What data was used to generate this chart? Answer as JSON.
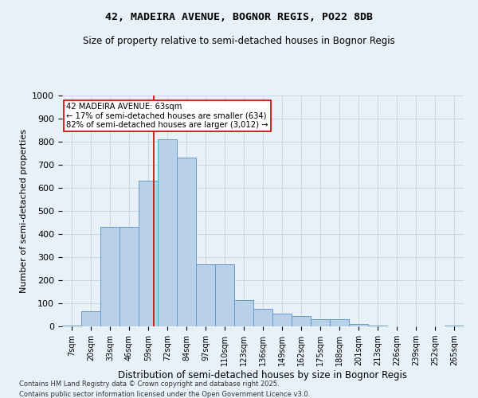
{
  "title": "42, MADEIRA AVENUE, BOGNOR REGIS, PO22 8DB",
  "subtitle": "Size of property relative to semi-detached houses in Bognor Regis",
  "xlabel": "Distribution of semi-detached houses by size in Bognor Regis",
  "ylabel": "Number of semi-detached properties",
  "categories": [
    "7sqm",
    "20sqm",
    "33sqm",
    "46sqm",
    "59sqm",
    "72sqm",
    "84sqm",
    "97sqm",
    "110sqm",
    "123sqm",
    "136sqm",
    "149sqm",
    "162sqm",
    "175sqm",
    "188sqm",
    "201sqm",
    "213sqm",
    "226sqm",
    "239sqm",
    "252sqm",
    "265sqm"
  ],
  "values": [
    2,
    65,
    430,
    430,
    630,
    810,
    730,
    270,
    270,
    115,
    75,
    55,
    45,
    30,
    30,
    10,
    2,
    1,
    0,
    0,
    2
  ],
  "bar_color": "#b8d0e8",
  "bar_edge_color": "#6699cc",
  "bar_linewidth": 0.7,
  "vline_color": "#cc0000",
  "vline_linewidth": 1.2,
  "property_sqm": 63,
  "bin_start_values": [
    7,
    20,
    33,
    46,
    59,
    72,
    84,
    97,
    110,
    123,
    136,
    149,
    162,
    175,
    188,
    201,
    213,
    226,
    239,
    252,
    265
  ],
  "bin_width": 13,
  "annotation_title": "42 MADEIRA AVENUE: 63sqm",
  "annotation_line1": "← 17% of semi-detached houses are smaller (634)",
  "annotation_line2": "82% of semi-detached houses are larger (3,012) →",
  "annotation_box_color": "#ffffff",
  "annotation_box_edge": "#cc0000",
  "ylim": [
    0,
    1000
  ],
  "yticks": [
    0,
    100,
    200,
    300,
    400,
    500,
    600,
    700,
    800,
    900,
    1000
  ],
  "grid_color": "#c8d8e8",
  "bg_color": "#e8f0f8",
  "footer1": "Contains HM Land Registry data © Crown copyright and database right 2025.",
  "footer2": "Contains public sector information licensed under the Open Government Licence v3.0."
}
